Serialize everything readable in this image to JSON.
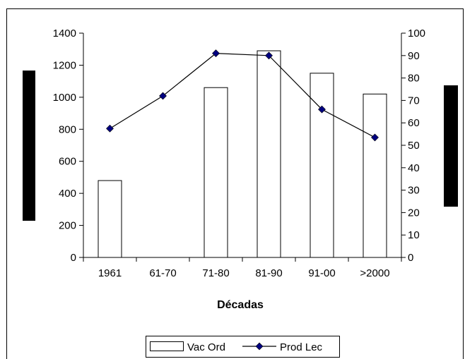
{
  "chart_data": {
    "type": "bar",
    "categories": [
      "1961",
      "61-70",
      "71-80",
      "81-90",
      "91-00",
      ">2000"
    ],
    "series": [
      {
        "name": "Vac Ord",
        "type": "bar",
        "axis": "left",
        "values": [
          480,
          0,
          1060,
          1290,
          1150,
          1020
        ],
        "fill": "#ffffff",
        "stroke": "#000000"
      },
      {
        "name": "Prod Lec",
        "type": "line",
        "axis": "right",
        "values": [
          57.5,
          72,
          91,
          90,
          66,
          53.5
        ],
        "color": "#000080",
        "marker": "diamond"
      }
    ],
    "xlabel": "Décadas",
    "ylabel": "",
    "y2label": "",
    "ylim": [
      0,
      1400
    ],
    "y2lim": [
      0,
      100
    ],
    "yticks": [
      "0",
      "200",
      "400",
      "600",
      "800",
      "1000",
      "1200",
      "1400"
    ],
    "y2ticks": [
      "0",
      "10",
      "20",
      "30",
      "40",
      "50",
      "60",
      "70",
      "80",
      "90",
      "100"
    ],
    "grid": false,
    "legend": "bottom"
  }
}
